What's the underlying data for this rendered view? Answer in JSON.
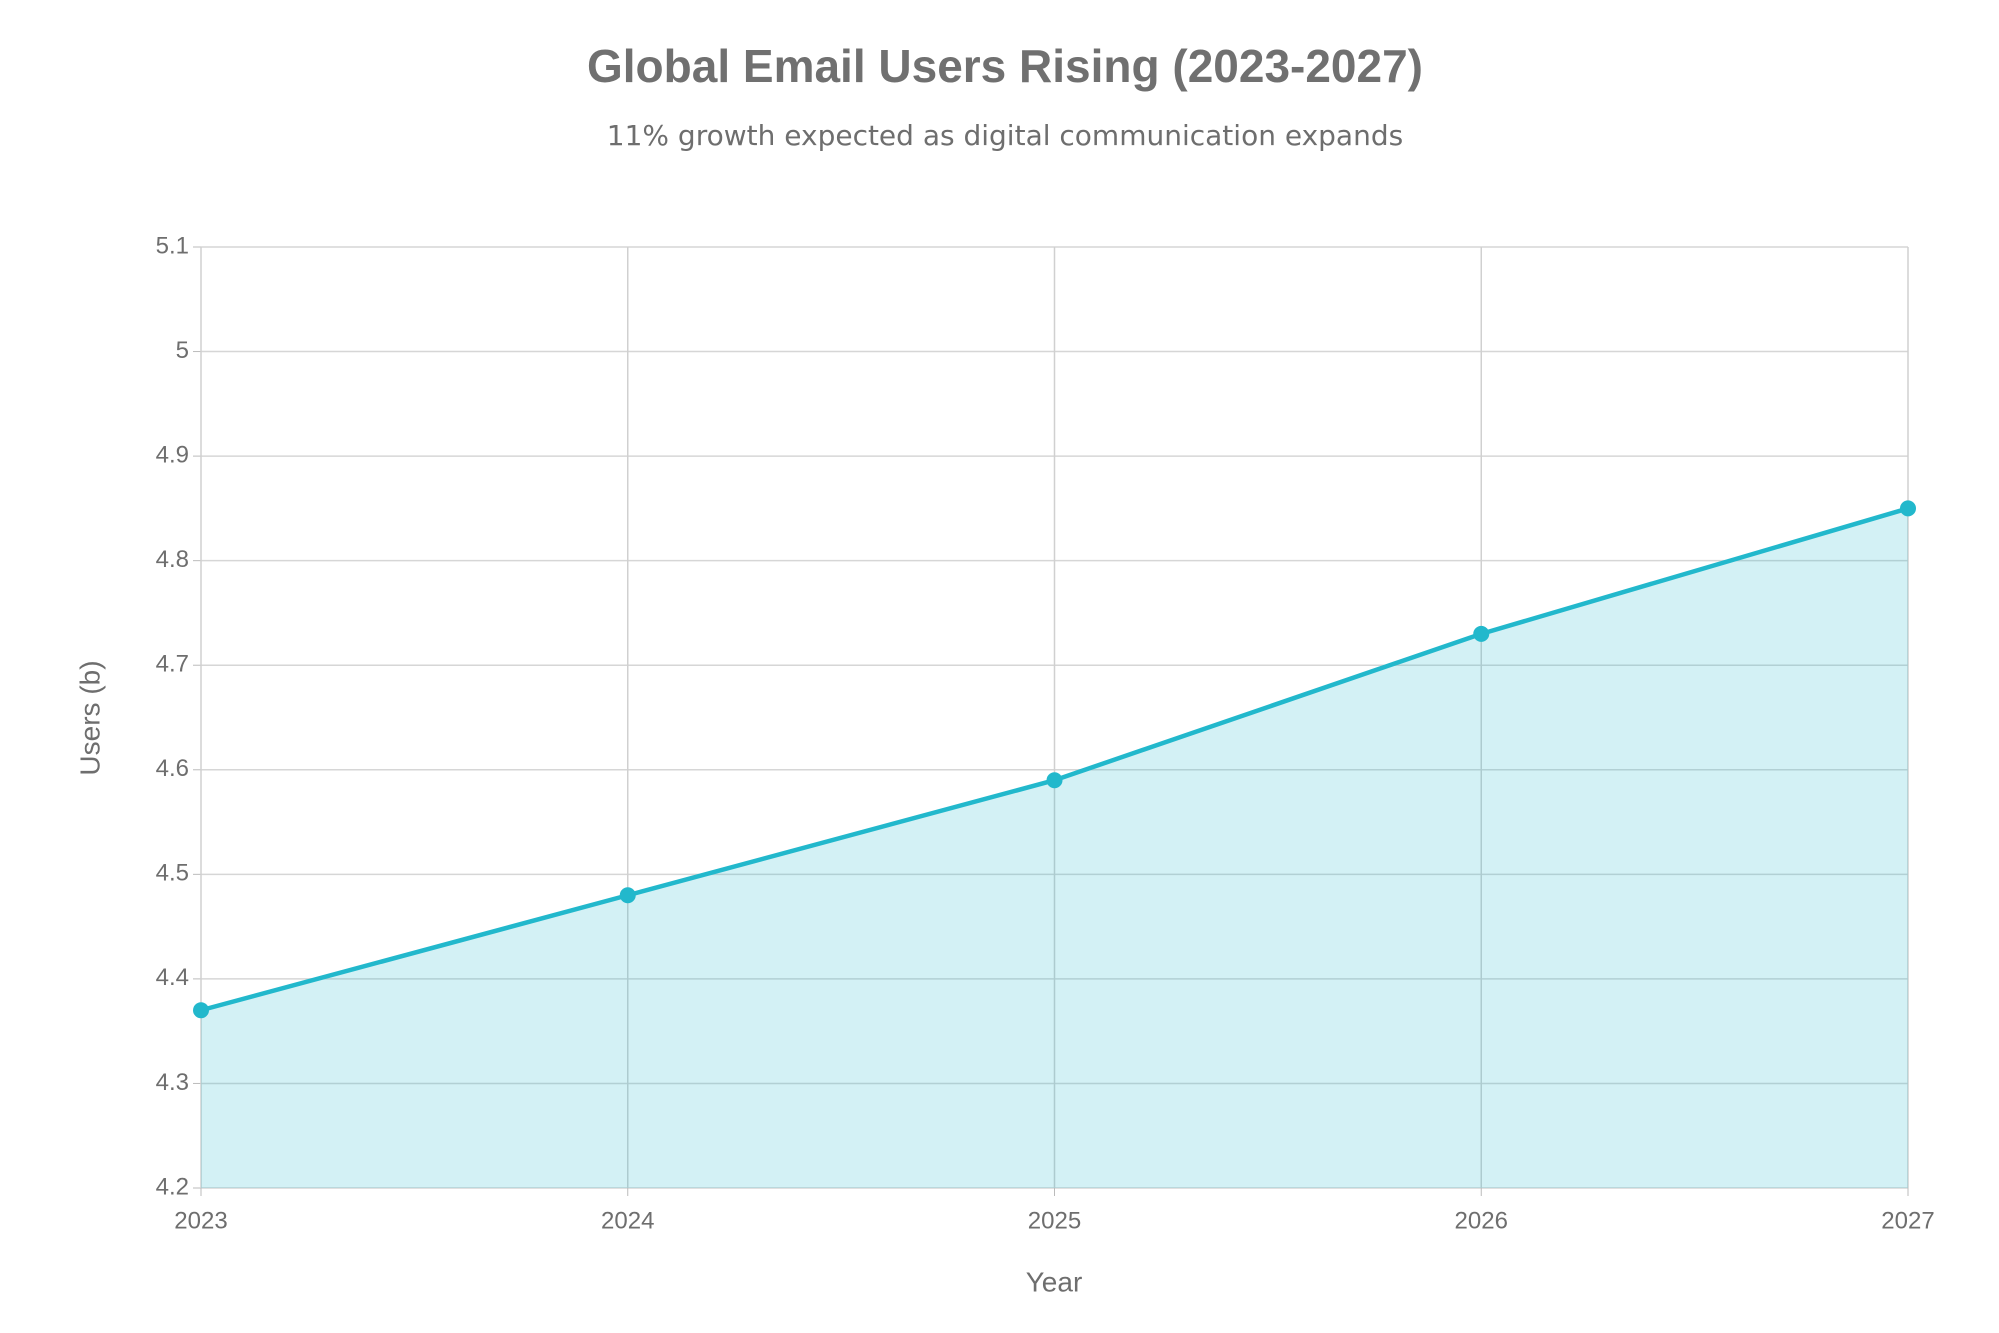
{
  "chart_data": {
    "type": "line",
    "title": "Global Email Users Rising (2023-2027)",
    "subtitle": "11% growth expected as digital communication expands",
    "x_label": "Year",
    "y_label": "Users (b)",
    "x": [
      2023,
      2024,
      2025,
      2026,
      2027
    ],
    "values": [
      4.37,
      4.48,
      4.59,
      4.73,
      4.85
    ],
    "color": "#22b8cc",
    "area": true,
    "markers": true,
    "grid": true,
    "xlim": [
      2023,
      2027
    ],
    "xticks": [
      2023,
      2024,
      2025,
      2026,
      2027
    ],
    "ylim": [
      4.2,
      5.1
    ],
    "yticks": [
      4.2,
      4.3,
      4.4,
      4.5,
      4.6,
      4.7,
      4.8,
      4.9,
      5,
      5.1
    ]
  }
}
